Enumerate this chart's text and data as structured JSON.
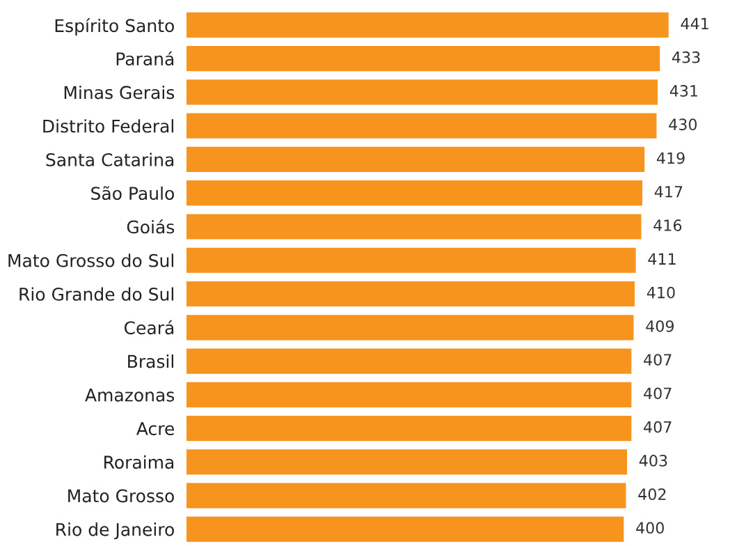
{
  "chart_data": {
    "type": "bar",
    "orientation": "horizontal",
    "categories": [
      "Espírito Santo",
      "Paraná",
      "Minas Gerais",
      "Distrito Federal",
      "Santa Catarina",
      "São Paulo",
      "Goiás",
      "Mato Grosso do Sul",
      "Rio Grande do Sul",
      "Ceará",
      "Brasil",
      "Amazonas",
      "Acre",
      "Roraima",
      "Mato Grosso",
      "Rio de Janeiro"
    ],
    "values": [
      441,
      433,
      431,
      430,
      419,
      417,
      416,
      411,
      410,
      409,
      407,
      407,
      407,
      403,
      402,
      400
    ],
    "color": "#f7941d",
    "data_labels": true,
    "grid": false,
    "legend": false
  }
}
